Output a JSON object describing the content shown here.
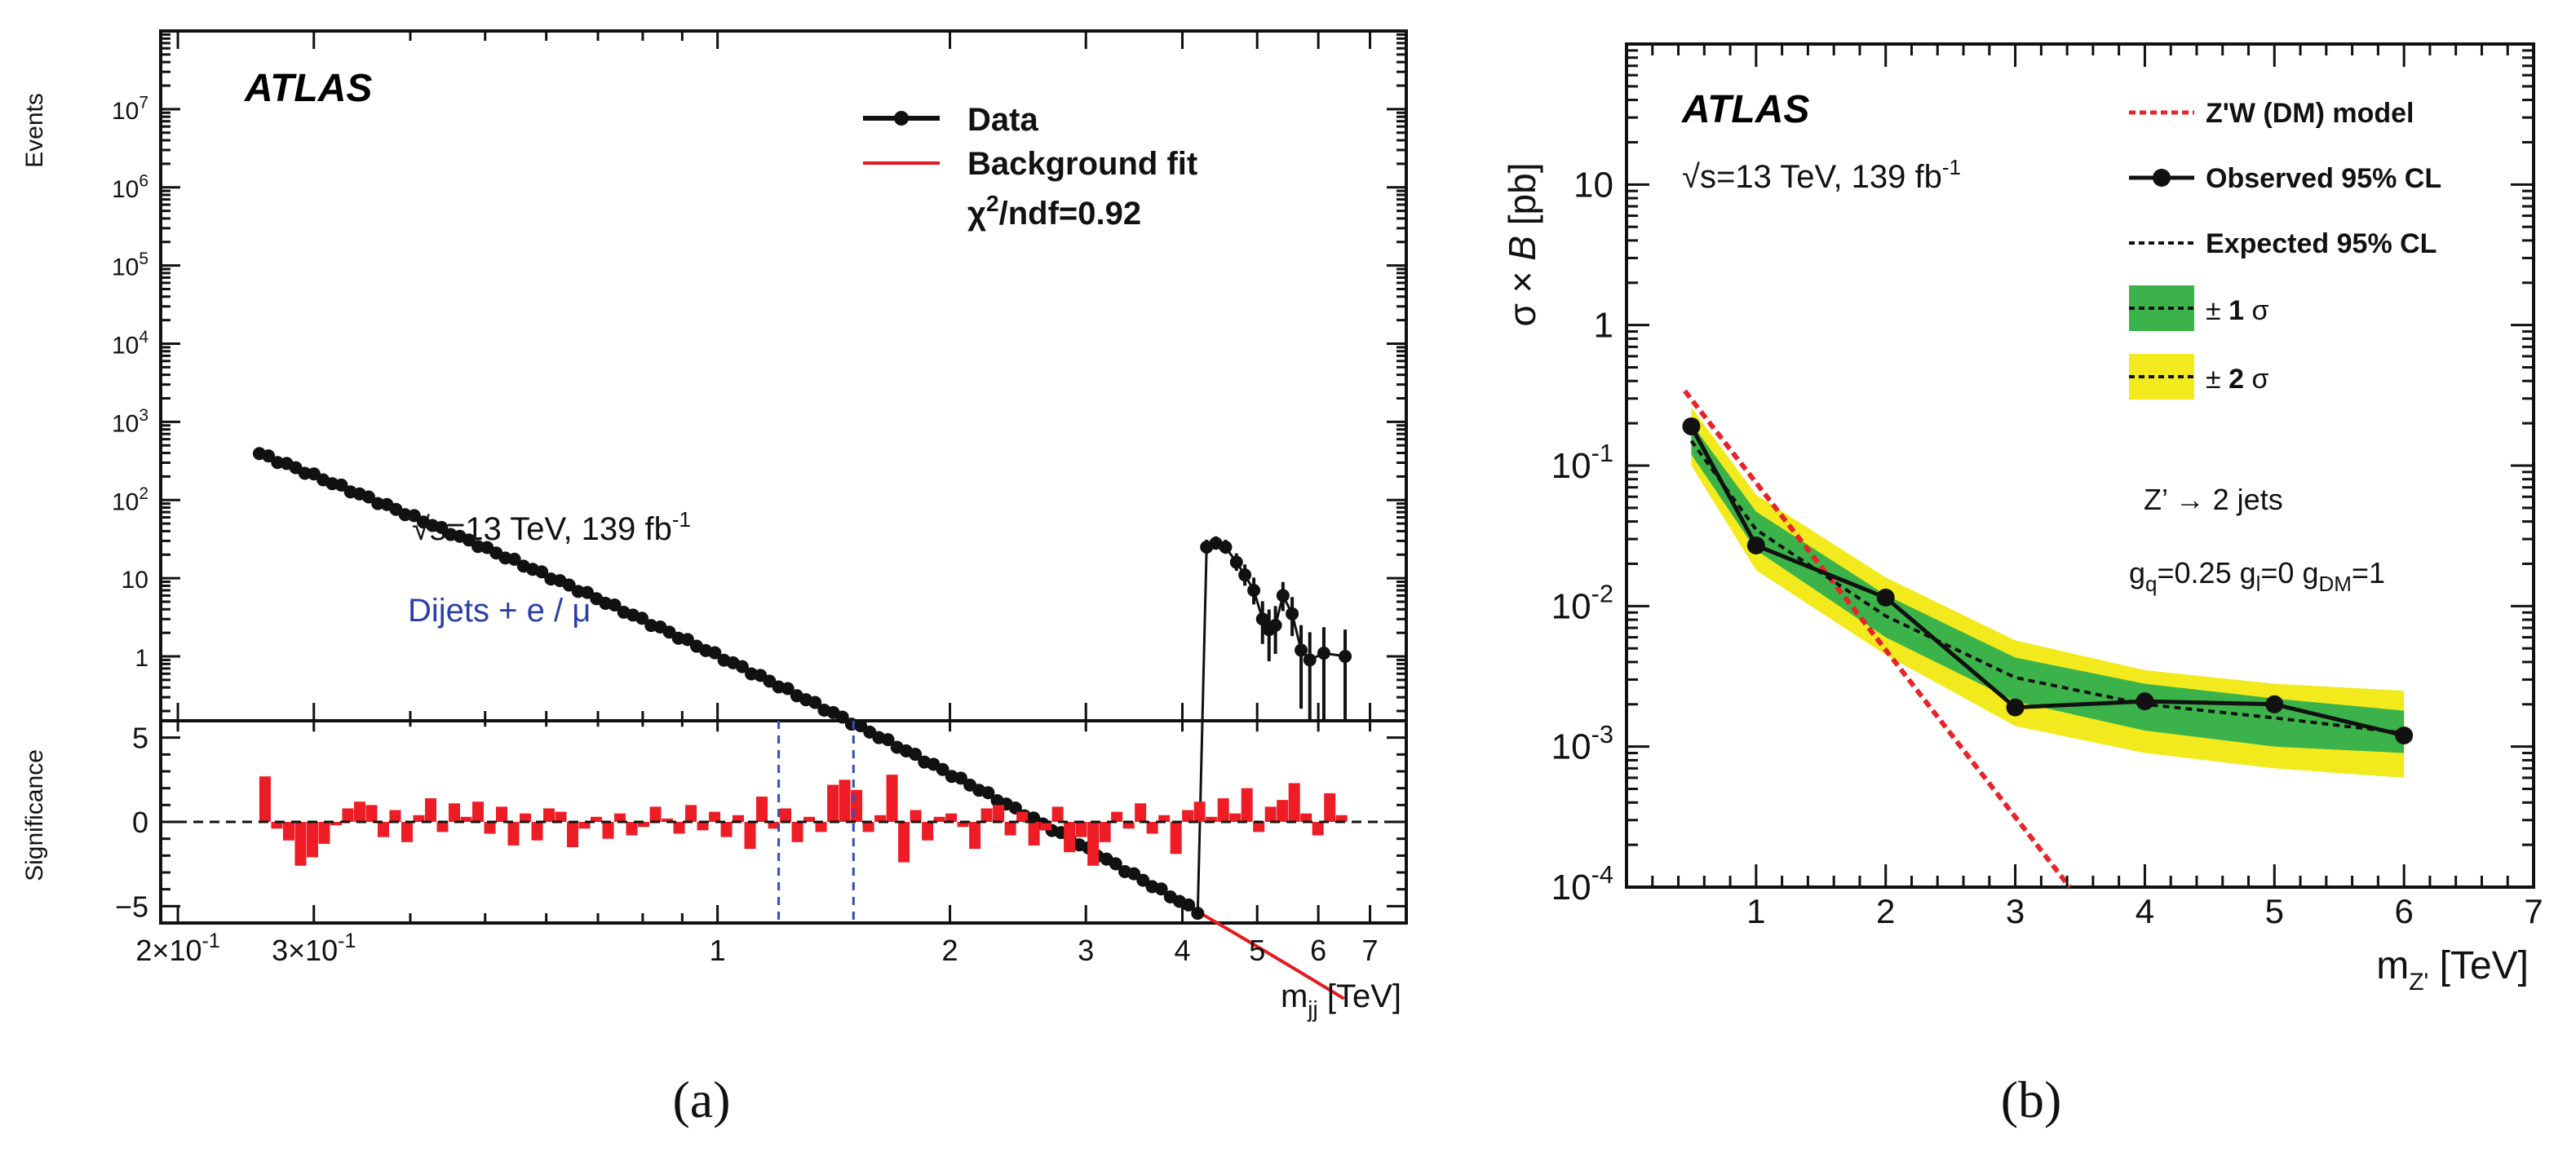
{
  "panel_a": {
    "panel_label": "(a)",
    "atlas": "ATLAS",
    "energy_prefix": "√s=13 TeV,  139 fb",
    "energy_sup": "-1",
    "channel": "Dijets +  e / μ",
    "legend_data": "Data",
    "legend_fit": "Background fit",
    "legend_chi2_prefix": "χ",
    "legend_chi2_sup": "2",
    "legend_chi2_suffix": "/ndf=0.92",
    "ylabel_top": "Events",
    "ylabel_bottom": "Significance",
    "xlabel_main": "m",
    "xlabel_sub": "jj",
    "xlabel_unit": " [TeV]"
  },
  "panel_b": {
    "panel_label": "(b)",
    "atlas": "ATLAS",
    "energy_prefix": "√s=13 TeV,  139 fb",
    "energy_sup": "-1",
    "model_line1": "Z’ → 2 jets",
    "coupling_q": "g",
    "coupling_q_sub": "q",
    "coupling_q_val": "=0.25 ",
    "coupling_l": "g",
    "coupling_l_sub": "l",
    "coupling_l_val": "=0 ",
    "coupling_dm": "g",
    "coupling_dm_sub": "DM",
    "coupling_dm_val": "=1",
    "legend_model": "Z'W (DM) model",
    "legend_observed": "Observed 95% CL",
    "legend_expected": "Expected 95% CL",
    "legend_1sigma_pm": "± ",
    "legend_1sigma_n": "1",
    "legend_1sigma_s": " σ",
    "legend_2sigma_pm": "± ",
    "legend_2sigma_n": "2",
    "legend_2sigma_s": " σ",
    "ylabel_prefix": "σ × ",
    "ylabel_B": "B",
    "ylabel_unit": " [pb]",
    "xlabel_main": "m",
    "xlabel_sub": "Z'",
    "xlabel_unit": " [TeV]"
  },
  "colors": {
    "fit_red": "#e41a1c",
    "sig_red": "#ee1c24",
    "data_black": "#111111",
    "green_band": "#3cb34a",
    "yellow_band": "#f2ea1c",
    "model_red": "#e8232a",
    "channel_blue": "#2b3fa8",
    "window_blue": "#2f4fbf"
  },
  "chart_data": [
    {
      "type": "scatter",
      "name": "dijet_mass_spectrum",
      "xlabel": "m_jj [TeV]",
      "ylabel": "Events",
      "xscale": "log",
      "yscale": "log",
      "xlim": [
        0.19,
        7.8
      ],
      "ylim": [
        0.15,
        100000000
      ],
      "x_ticks": [
        {
          "v": 0.2,
          "m": "2",
          "e": "-1"
        },
        {
          "v": 0.3,
          "m": "3",
          "e": "-1"
        },
        {
          "v": 1,
          "t": "1"
        },
        {
          "v": 2,
          "t": "2"
        },
        {
          "v": 3,
          "t": "3"
        },
        {
          "v": 4,
          "t": "4"
        },
        {
          "v": 5,
          "t": "5"
        },
        {
          "v": 6,
          "t": "6"
        },
        {
          "v": 7,
          "t": "7"
        }
      ],
      "y_ticks": [
        {
          "v": 1,
          "t": "1"
        },
        {
          "v": 10,
          "t": "10"
        },
        {
          "v": 100,
          "e": "2"
        },
        {
          "v": 1000,
          "e": "3"
        },
        {
          "v": 10000,
          "e": "4"
        },
        {
          "v": 100000,
          "e": "5"
        },
        {
          "v": 1000000,
          "e": "6"
        },
        {
          "v": 10000000,
          "e": "7"
        }
      ],
      "fit": {
        "name": "Background fit",
        "norm_log10": 0.01,
        "slope": 4.8,
        "curv": 0.75
      },
      "data_points": [
        {
          "x": 4.3,
          "y": 25
        },
        {
          "x": 4.42,
          "y": 28
        },
        {
          "x": 4.55,
          "y": 25
        },
        {
          "x": 4.7,
          "y": 16
        },
        {
          "x": 4.82,
          "y": 11
        },
        {
          "x": 4.95,
          "y": 7
        },
        {
          "x": 5.08,
          "y": 3
        },
        {
          "x": 5.18,
          "y": 2.2
        },
        {
          "x": 5.28,
          "y": 2.5
        },
        {
          "x": 5.4,
          "y": 6
        },
        {
          "x": 5.55,
          "y": 3.5
        },
        {
          "x": 5.7,
          "y": 1.2
        },
        {
          "x": 5.85,
          "y": 0.9
        },
        {
          "x": 6.1,
          "y": 1.1
        },
        {
          "x": 6.5,
          "y": 1.0
        }
      ],
      "significance": {
        "ylabel": "Significance",
        "ylim": [
          -6,
          6
        ],
        "y_ticks": [
          -5,
          0,
          5
        ],
        "values": [
          2.7,
          -0.4,
          -1.1,
          -2.6,
          -2.1,
          -1.3,
          -0.2,
          0.8,
          1.2,
          1.0,
          -0.9,
          0.7,
          -1.2,
          0.4,
          1.4,
          -0.6,
          1.1,
          0.3,
          1.2,
          -0.7,
          0.9,
          -1.4,
          0.5,
          -1.1,
          0.8,
          0.6,
          -1.5,
          -0.4,
          0.3,
          -1.0,
          0.5,
          -0.8,
          -0.3,
          0.9,
          0.2,
          -0.7,
          1.0,
          -0.5,
          0.6,
          -0.9,
          0.4,
          -1.6,
          1.5,
          -0.4,
          0.8,
          -1.2,
          0.3,
          -0.6,
          2.2,
          2.5,
          1.9,
          -0.6,
          0.4,
          2.8,
          -2.4,
          0.7,
          -1.1,
          0.3,
          0.5,
          -0.3,
          -1.6,
          0.8,
          1.0,
          -0.8,
          0.6,
          -1.4,
          -0.5,
          0.9,
          -1.8,
          -0.9,
          -2.6,
          -1.2,
          0.6,
          -0.4,
          1.1,
          -0.7,
          0.4,
          -1.9,
          0.7,
          1.2,
          0.3,
          1.4,
          0.5,
          2.0,
          -0.6,
          0.9,
          1.3,
          2.3,
          0.5,
          -0.8,
          1.7,
          0.4
        ],
        "window_lines_TeV": [
          1.2,
          1.5
        ]
      },
      "legend": [
        "Data",
        "Background fit",
        "χ2/ndf=0.92"
      ]
    },
    {
      "type": "line",
      "name": "cross_section_limits",
      "xlabel": "m_Z' [TeV]",
      "ylabel": "σ × B [pb]",
      "xscale": "linear",
      "yscale": "log",
      "xlim": [
        0,
        7
      ],
      "ylim": [
        0.0001,
        100
      ],
      "x_ticks": [
        1,
        2,
        3,
        4,
        5,
        6,
        7
      ],
      "y_ticks": [
        {
          "v": 10,
          "t": "10"
        },
        {
          "v": 1,
          "t": "1"
        },
        {
          "v": 0.1,
          "e": "-1"
        },
        {
          "v": 0.01,
          "e": "-2"
        },
        {
          "v": 0.001,
          "e": "-3"
        },
        {
          "v": 0.0001,
          "e": "-4"
        }
      ],
      "series": [
        {
          "name": "Observed 95% CL",
          "x": [
            0.5,
            1,
            2,
            3,
            4,
            5,
            6
          ],
          "y": [
            0.19,
            0.027,
            0.0115,
            0.0019,
            0.0021,
            0.002,
            0.0012
          ]
        },
        {
          "name": "Expected 95% CL",
          "x": [
            0.5,
            1,
            2,
            3,
            4,
            5,
            6
          ],
          "y": [
            0.15,
            0.035,
            0.0085,
            0.0031,
            0.002,
            0.0016,
            0.00125
          ]
        },
        {
          "name": "Z'W (DM) model",
          "x": [
            0.45,
            3.42
          ],
          "y": [
            0.34,
            0.0001
          ]
        }
      ],
      "bands": [
        {
          "name": "± 2 σ",
          "x": [
            0.5,
            1,
            2,
            3,
            4,
            5,
            6
          ],
          "lo": [
            0.1,
            0.018,
            0.0045,
            0.0014,
            0.0009,
            0.0007,
            0.0006
          ],
          "hi": [
            0.26,
            0.062,
            0.016,
            0.0057,
            0.0035,
            0.0028,
            0.0025
          ]
        },
        {
          "name": "± 1 σ",
          "x": [
            0.5,
            1,
            2,
            3,
            4,
            5,
            6
          ],
          "lo": [
            0.12,
            0.025,
            0.006,
            0.0021,
            0.0013,
            0.001,
            0.0009
          ],
          "hi": [
            0.2,
            0.047,
            0.012,
            0.0043,
            0.0028,
            0.0022,
            0.0018
          ]
        }
      ]
    }
  ]
}
